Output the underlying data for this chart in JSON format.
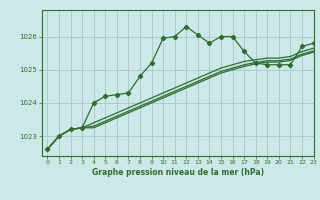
{
  "title": "Graphe pression niveau de la mer (hPa)",
  "bg_color": "#cce8e8",
  "grid_color": "#aacccc",
  "line_color": "#2d6e2d",
  "xlim": [
    -0.5,
    23
  ],
  "ylim": [
    1022.4,
    1026.8
  ],
  "yticks": [
    1023,
    1024,
    1025,
    1026
  ],
  "xticks": [
    0,
    1,
    2,
    3,
    4,
    5,
    6,
    7,
    8,
    9,
    10,
    11,
    12,
    13,
    14,
    15,
    16,
    17,
    18,
    19,
    20,
    21,
    22,
    23
  ],
  "series1_x": [
    0,
    1,
    2,
    3,
    4,
    5,
    6,
    7,
    8,
    9,
    10,
    11,
    12,
    13,
    14,
    15,
    16,
    17,
    18,
    19,
    20,
    21,
    22,
    23
  ],
  "series1_y": [
    1022.6,
    1023.0,
    1023.2,
    1023.25,
    1024.0,
    1024.2,
    1024.25,
    1024.3,
    1024.8,
    1025.2,
    1025.95,
    1026.0,
    1026.3,
    1026.05,
    1025.8,
    1026.0,
    1026.0,
    1025.55,
    1025.2,
    1025.15,
    1025.15,
    1025.15,
    1025.7,
    1025.8
  ],
  "series2_x": [
    0,
    1,
    2,
    3,
    4,
    5,
    6,
    7,
    8,
    9,
    10,
    11,
    12,
    13,
    14,
    15,
    16,
    17,
    18,
    19,
    20,
    21,
    22,
    23
  ],
  "series2_y": [
    1022.6,
    1023.0,
    1023.2,
    1023.25,
    1023.4,
    1023.55,
    1023.7,
    1023.85,
    1024.0,
    1024.15,
    1024.3,
    1024.45,
    1024.6,
    1024.75,
    1024.9,
    1025.05,
    1025.15,
    1025.25,
    1025.3,
    1025.35,
    1025.35,
    1025.4,
    1025.55,
    1025.65
  ],
  "series3_x": [
    0,
    1,
    2,
    3,
    4,
    5,
    6,
    7,
    8,
    9,
    10,
    11,
    12,
    13,
    14,
    15,
    16,
    17,
    18,
    19,
    20,
    21,
    22,
    23
  ],
  "series3_y": [
    1022.6,
    1023.0,
    1023.2,
    1023.25,
    1023.3,
    1023.45,
    1023.6,
    1023.75,
    1023.9,
    1024.05,
    1024.2,
    1024.35,
    1024.5,
    1024.65,
    1024.8,
    1024.95,
    1025.05,
    1025.15,
    1025.22,
    1025.27,
    1025.27,
    1025.32,
    1025.47,
    1025.57
  ],
  "series4_x": [
    0,
    1,
    2,
    3,
    4,
    5,
    6,
    7,
    8,
    9,
    10,
    11,
    12,
    13,
    14,
    15,
    16,
    17,
    18,
    19,
    20,
    21,
    22,
    23
  ],
  "series4_y": [
    1022.6,
    1023.0,
    1023.2,
    1023.25,
    1023.25,
    1023.4,
    1023.55,
    1023.7,
    1023.85,
    1024.0,
    1024.15,
    1024.3,
    1024.45,
    1024.6,
    1024.75,
    1024.9,
    1025.0,
    1025.1,
    1025.18,
    1025.23,
    1025.23,
    1025.28,
    1025.43,
    1025.53
  ]
}
